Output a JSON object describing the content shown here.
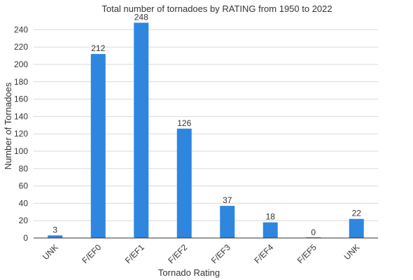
{
  "chart_data": {
    "type": "bar",
    "title": "Total number of tornadoes by RATING from 1950 to 2022",
    "xlabel": "Tornado Rating",
    "ylabel": "Number of Tornadoes",
    "categories": [
      "UNK",
      "F/EF0",
      "F/EF1",
      "F/EF2",
      "F/EF3",
      "F/EF4",
      "F/EF5",
      "UNK"
    ],
    "values": [
      3,
      212,
      248,
      126,
      37,
      18,
      0,
      22
    ],
    "ylim": [
      0,
      250
    ],
    "yticks": [
      0,
      20,
      40,
      60,
      80,
      100,
      120,
      140,
      160,
      180,
      200,
      220,
      240
    ],
    "grid": true,
    "bar_color": "#2e86de",
    "data_labels": true
  }
}
